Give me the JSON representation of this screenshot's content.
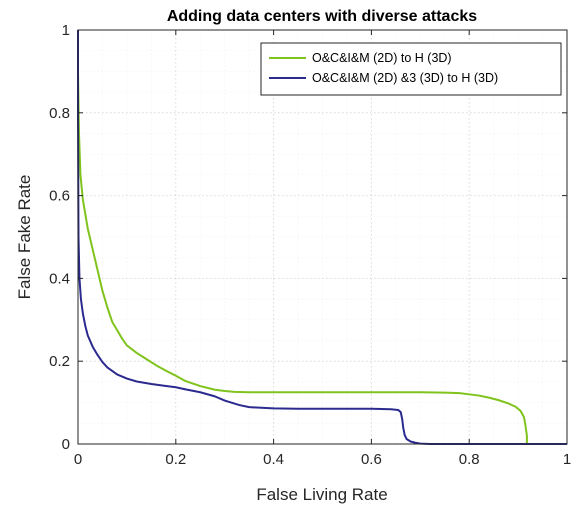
{
  "chart_data": {
    "type": "line",
    "title": "Adding data centers with diverse attacks",
    "xlabel": "False Living Rate",
    "ylabel": "False Fake Rate",
    "xlim": [
      0,
      1
    ],
    "ylim": [
      0,
      1
    ],
    "xticks": [
      0,
      0.2,
      0.4,
      0.6,
      0.8,
      1
    ],
    "yticks": [
      0,
      0.2,
      0.4,
      0.6,
      0.8,
      1
    ],
    "xtick_labels": [
      "0",
      "0.2",
      "0.4",
      "0.6",
      "0.8",
      "1"
    ],
    "ytick_labels": [
      "0",
      "0.2",
      "0.4",
      "0.6",
      "0.8",
      "1"
    ],
    "grid": true,
    "minor_grid": true,
    "legend_position": "top-right",
    "series": [
      {
        "name": "O&C&I&M (2D) to H (3D)",
        "color": "#7fc31c",
        "x": [
          0.0,
          0.0,
          0.002,
          0.005,
          0.01,
          0.02,
          0.03,
          0.04,
          0.05,
          0.06,
          0.07,
          0.08,
          0.09,
          0.1,
          0.12,
          0.14,
          0.16,
          0.18,
          0.2,
          0.22,
          0.25,
          0.28,
          0.3,
          0.32,
          0.35,
          0.4,
          0.45,
          0.5,
          0.55,
          0.6,
          0.65,
          0.7,
          0.75,
          0.78,
          0.8,
          0.82,
          0.84,
          0.86,
          0.88,
          0.895,
          0.905,
          0.912,
          0.915,
          0.918,
          0.918
        ],
        "y": [
          0.98,
          0.9,
          0.75,
          0.65,
          0.59,
          0.52,
          0.47,
          0.42,
          0.37,
          0.33,
          0.295,
          0.275,
          0.255,
          0.238,
          0.22,
          0.205,
          0.19,
          0.177,
          0.165,
          0.152,
          0.14,
          0.131,
          0.128,
          0.126,
          0.125,
          0.125,
          0.125,
          0.125,
          0.125,
          0.125,
          0.125,
          0.125,
          0.124,
          0.123,
          0.12,
          0.117,
          0.112,
          0.106,
          0.098,
          0.09,
          0.08,
          0.065,
          0.045,
          0.02,
          0.0
        ]
      },
      {
        "name": "O&C&I&M (2D) &3 (3D) to H (3D)",
        "color": "#2a2a8f",
        "x": [
          0.0,
          0.0,
          0.001,
          0.003,
          0.006,
          0.01,
          0.015,
          0.02,
          0.03,
          0.04,
          0.05,
          0.06,
          0.08,
          0.1,
          0.12,
          0.15,
          0.18,
          0.2,
          0.22,
          0.25,
          0.28,
          0.3,
          0.33,
          0.35,
          0.4,
          0.45,
          0.5,
          0.55,
          0.6,
          0.64,
          0.655,
          0.66,
          0.663,
          0.665,
          0.668,
          0.672,
          0.68,
          0.69,
          0.7,
          0.72,
          0.8,
          0.9,
          1.0
        ],
        "y": [
          1.0,
          0.8,
          0.5,
          0.4,
          0.35,
          0.315,
          0.285,
          0.262,
          0.235,
          0.215,
          0.198,
          0.185,
          0.168,
          0.158,
          0.151,
          0.145,
          0.14,
          0.137,
          0.132,
          0.125,
          0.115,
          0.105,
          0.094,
          0.089,
          0.086,
          0.085,
          0.085,
          0.085,
          0.085,
          0.084,
          0.082,
          0.077,
          0.06,
          0.04,
          0.022,
          0.012,
          0.006,
          0.003,
          0.001,
          0.0,
          0.0,
          0.0,
          0.0
        ]
      }
    ]
  }
}
